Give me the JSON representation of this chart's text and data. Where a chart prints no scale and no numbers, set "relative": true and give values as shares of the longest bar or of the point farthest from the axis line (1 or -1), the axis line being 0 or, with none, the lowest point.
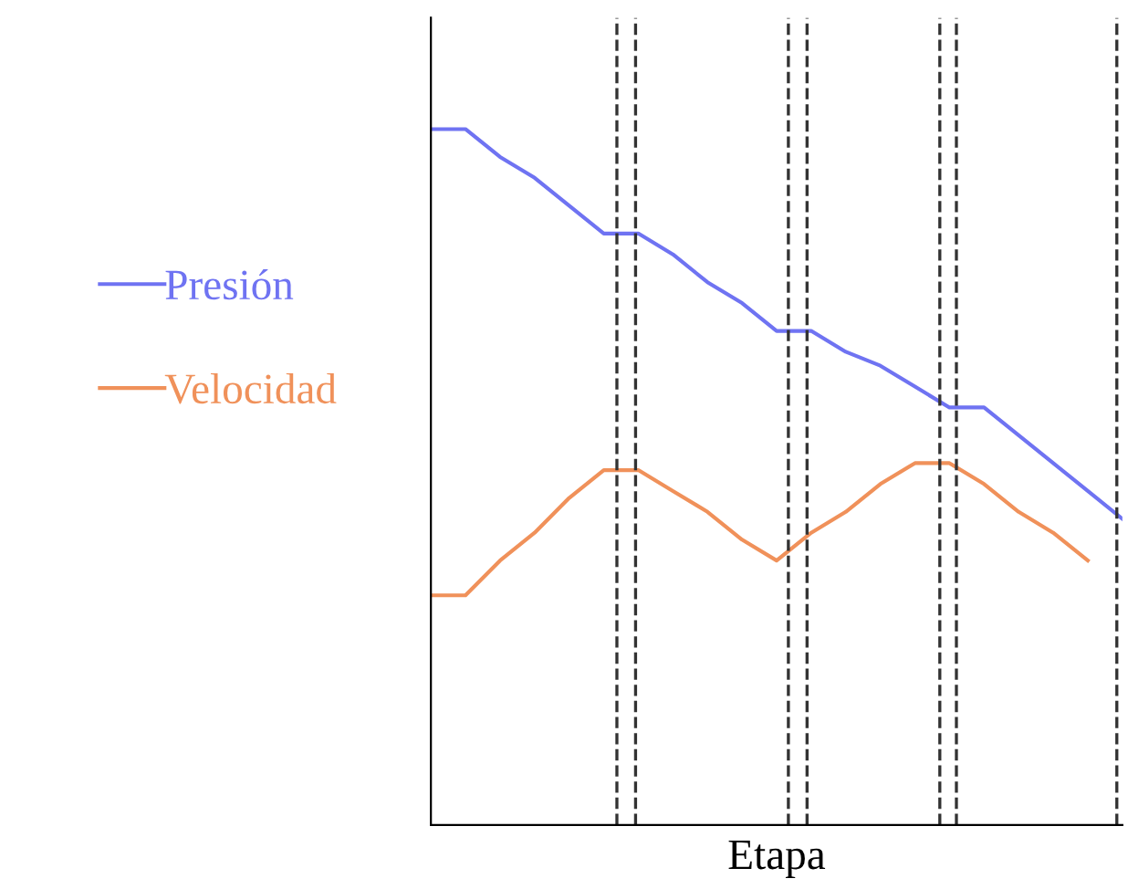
{
  "chart_data": {
    "type": "line",
    "relative": true,
    "xlabel": "Etapa",
    "legend": "left",
    "categories": [
      null,
      null,
      null,
      null,
      null,
      null,
      null,
      null,
      null,
      null,
      null,
      null,
      null,
      null,
      null,
      null,
      null,
      null,
      null,
      null,
      null
    ],
    "series": [
      {
        "name": "Presión",
        "color": "#6f73f2",
        "values": [
          1,
          1,
          0.96,
          0.93,
          0.89,
          0.85,
          0.85,
          0.82,
          0.78,
          0.75,
          0.71,
          0.71,
          0.68,
          0.66,
          0.63,
          0.6,
          0.6,
          0.56,
          0.52,
          0.48,
          0.44
        ]
      },
      {
        "name": "Velocidad",
        "color": "#f0915a",
        "values": [
          0.33,
          0.33,
          0.38,
          0.42,
          0.47,
          0.51,
          0.51,
          0.48,
          0.45,
          0.41,
          0.38,
          0.42,
          0.45,
          0.49,
          0.52,
          0.52,
          0.49,
          0.45,
          0.42,
          0.38,
          null
        ]
      }
    ]
  }
}
